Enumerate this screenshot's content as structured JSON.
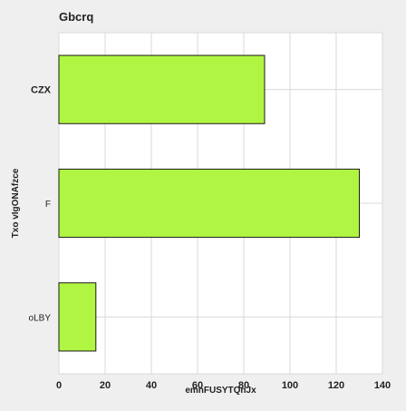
{
  "chart_data": {
    "type": "bar",
    "orientation": "horizontal",
    "title": "Gbcrq",
    "xlabel": "emnFUSYTQnJx",
    "ylabel": "Txo vIgONAfzce",
    "categories": [
      "CZX",
      "F",
      "oLBY"
    ],
    "category_bold": [
      true,
      false,
      false
    ],
    "values": [
      89,
      130,
      16
    ],
    "xlim": [
      0,
      140
    ],
    "xticks": [
      0,
      20,
      40,
      60,
      80,
      100,
      120,
      140
    ],
    "grid": true,
    "bar_color": "#b0f542",
    "bar_edge_color": "#1a1a1a",
    "plot_background": "#ffffff",
    "grid_color": "#d9d9d9"
  }
}
